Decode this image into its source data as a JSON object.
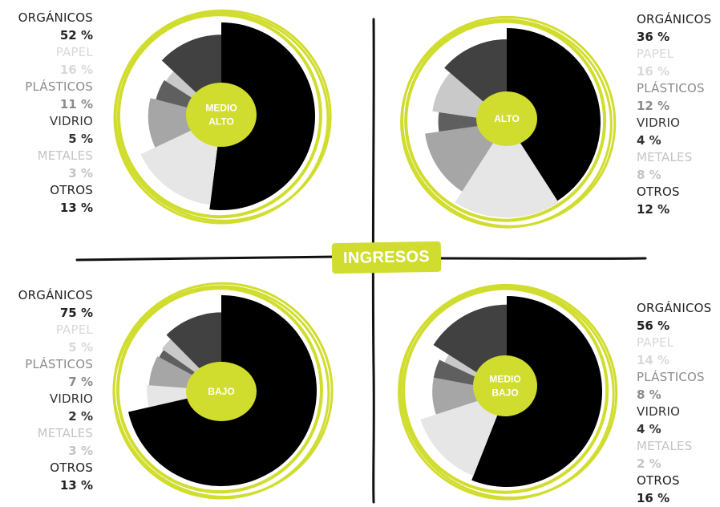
{
  "badge": {
    "label": "INGRESOS"
  },
  "colors": {
    "accent": "#d1dd2e",
    "categories": [
      "#000000",
      "#e6e6e6",
      "#a6a6a6",
      "#5f5f5f",
      "#c9c9c9",
      "#414141"
    ],
    "label_colors": [
      "#222222",
      "#d9d9d9",
      "#8c8c8c",
      "#333333",
      "#c4c4c4",
      "#222222"
    ]
  },
  "chart_data": [
    {
      "type": "pie",
      "quadrant": "top-left",
      "center_label": [
        "MEDIO",
        "ALTO"
      ],
      "categories": [
        "ORGÁNICOS",
        "PAPEL",
        "PLÁSTICOS",
        "VIDRIO",
        "METALES",
        "OTROS"
      ],
      "values": [
        52,
        16,
        11,
        5,
        3,
        13
      ],
      "display": [
        "52 %",
        "16 %",
        "11 %",
        "5 %",
        "3 %",
        "13 %"
      ]
    },
    {
      "type": "pie",
      "quadrant": "top-right",
      "center_label": [
        "ALTO"
      ],
      "categories": [
        "ORGÁNICOS",
        "PAPEL",
        "PLÁSTICOS",
        "VIDRIO",
        "METALES",
        "OTROS"
      ],
      "values": [
        36,
        16,
        12,
        4,
        8,
        12
      ],
      "display": [
        "36 %",
        "16 %",
        "12 %",
        "4 %",
        "8 %",
        "12 %"
      ]
    },
    {
      "type": "pie",
      "quadrant": "bottom-left",
      "center_label": [
        "BAJO"
      ],
      "categories": [
        "ORGÁNICOS",
        "PAPEL",
        "PLÁSTICOS",
        "VIDRIO",
        "METALES",
        "OTROS"
      ],
      "values": [
        75,
        5,
        7,
        2,
        3,
        13
      ],
      "display": [
        "75 %",
        "5 %",
        "7 %",
        "2 %",
        "3 %",
        "13 %"
      ]
    },
    {
      "type": "pie",
      "quadrant": "bottom-right",
      "center_label": [
        "MEDIO",
        "BAJO"
      ],
      "categories": [
        "ORGÁNICOS",
        "PAPEL",
        "PLÁSTICOS",
        "VIDRIO",
        "METALES",
        "OTROS"
      ],
      "values": [
        56,
        14,
        8,
        4,
        2,
        16
      ],
      "display": [
        "56 %",
        "14 %",
        "8 %",
        "4 %",
        "2 %",
        "16 %"
      ]
    }
  ]
}
